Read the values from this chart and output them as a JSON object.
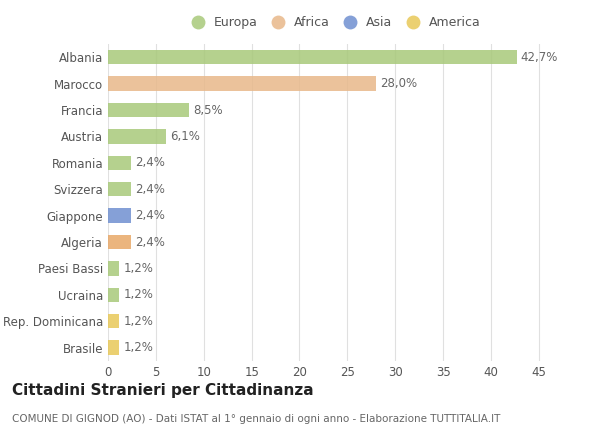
{
  "categories": [
    "Albania",
    "Marocco",
    "Francia",
    "Austria",
    "Romania",
    "Svizzera",
    "Giappone",
    "Algeria",
    "Paesi Bassi",
    "Ucraina",
    "Rep. Dominicana",
    "Brasile"
  ],
  "values": [
    42.7,
    28.0,
    8.5,
    6.1,
    2.4,
    2.4,
    2.4,
    2.4,
    1.2,
    1.2,
    1.2,
    1.2
  ],
  "labels": [
    "42,7%",
    "28,0%",
    "8,5%",
    "6,1%",
    "2,4%",
    "2,4%",
    "2,4%",
    "2,4%",
    "1,2%",
    "1,2%",
    "1,2%",
    "1,2%"
  ],
  "colors": [
    "#a8c97a",
    "#e8b88a",
    "#a8c97a",
    "#a8c97a",
    "#a8c97a",
    "#a8c97a",
    "#7090d0",
    "#e8a868",
    "#a8c97a",
    "#a8c97a",
    "#e8c858",
    "#e8c858"
  ],
  "legend_labels": [
    "Europa",
    "Africa",
    "Asia",
    "America"
  ],
  "legend_colors": [
    "#a8c97a",
    "#e8b88a",
    "#7090d0",
    "#e8c858"
  ],
  "title": "Cittadini Stranieri per Cittadinanza",
  "subtitle": "COMUNE DI GIGNOD (AO) - Dati ISTAT al 1° gennaio di ogni anno - Elaborazione TUTTITALIA.IT",
  "xlim": [
    0,
    47
  ],
  "xticks": [
    0,
    5,
    10,
    15,
    20,
    25,
    30,
    35,
    40,
    45
  ],
  "bg_color": "#ffffff",
  "grid_color": "#e0e0e0",
  "bar_height": 0.55,
  "label_fontsize": 8.5,
  "tick_fontsize": 8.5,
  "title_fontsize": 11,
  "subtitle_fontsize": 7.5
}
